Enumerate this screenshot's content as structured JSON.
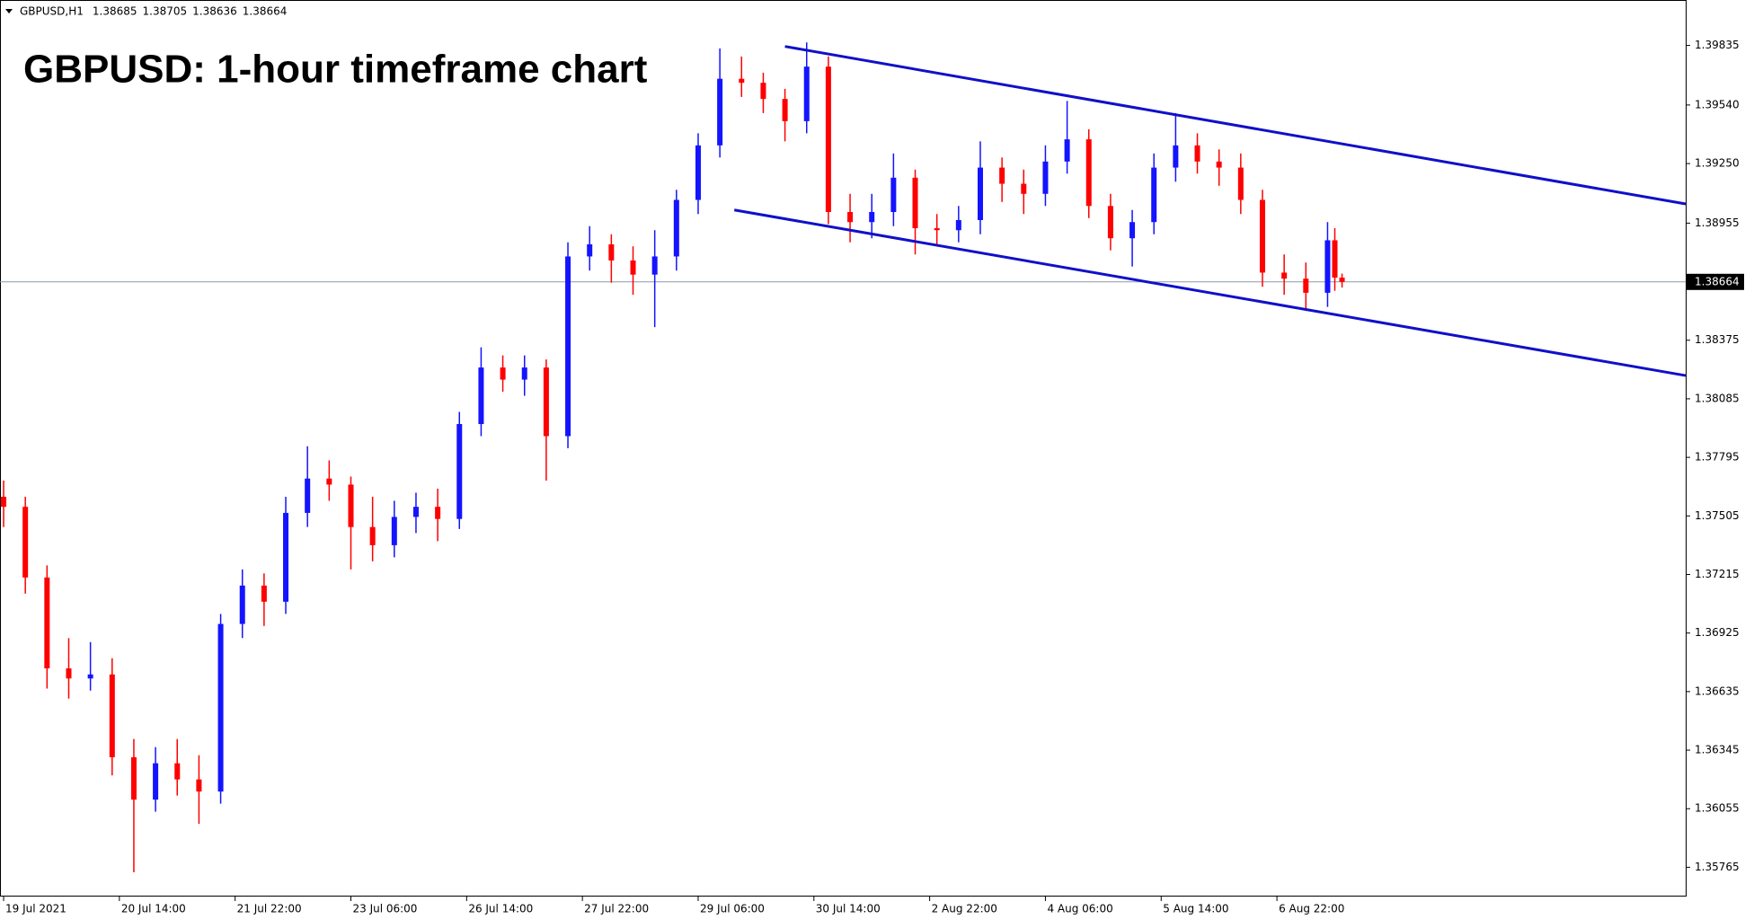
{
  "chart_data": {
    "type": "candlestick",
    "symbol": "GBPUSD,H1",
    "title": "GBPUSD: 1-hour timeframe chart",
    "x": [
      0,
      6,
      12,
      18,
      24,
      30,
      36,
      42,
      48,
      54,
      60,
      66,
      72,
      78,
      84,
      90,
      96,
      102,
      108,
      114,
      120,
      126,
      132,
      138,
      144,
      150,
      156,
      162,
      168,
      174,
      180,
      186,
      192,
      198,
      204,
      210,
      216,
      222,
      228,
      234,
      240,
      246,
      252,
      258,
      264,
      270,
      276,
      282,
      288,
      294,
      300,
      306,
      312,
      318,
      324,
      330,
      336,
      342,
      348,
      354,
      360,
      366,
      368,
      370
    ],
    "open": [
      1.376,
      1.3755,
      1.372,
      1.3675,
      1.367,
      1.3672,
      1.3631,
      1.361,
      1.3628,
      1.362,
      1.3614,
      1.3697,
      1.3716,
      1.3708,
      1.3752,
      1.3769,
      1.3766,
      1.3745,
      1.3736,
      1.375,
      1.3755,
      1.3749,
      1.3796,
      1.3824,
      1.3818,
      1.3824,
      1.379,
      1.3879,
      1.3885,
      1.3877,
      1.387,
      1.3879,
      1.3907,
      1.3934,
      1.3967,
      1.3965,
      1.3957,
      1.3946,
      1.3973,
      1.3901,
      1.3896,
      1.3901,
      1.3918,
      1.3893,
      1.3892,
      1.3897,
      1.3923,
      1.3915,
      1.391,
      1.3926,
      1.3937,
      1.3904,
      1.3888,
      1.3896,
      1.3923,
      1.3934,
      1.3926,
      1.3923,
      1.3907,
      1.3871,
      1.3868,
      1.3861,
      1.3887,
      1.38685
    ],
    "high": [
      1.3768,
      1.376,
      1.3726,
      1.369,
      1.3688,
      1.368,
      1.364,
      1.3636,
      1.364,
      1.3632,
      1.3702,
      1.3724,
      1.3722,
      1.376,
      1.3785,
      1.3778,
      1.377,
      1.376,
      1.3758,
      1.3762,
      1.3764,
      1.3802,
      1.3834,
      1.383,
      1.383,
      1.3828,
      1.3886,
      1.3894,
      1.389,
      1.3884,
      1.3892,
      1.3912,
      1.394,
      1.3982,
      1.3978,
      1.397,
      1.3962,
      1.3985,
      1.3978,
      1.391,
      1.391,
      1.393,
      1.3922,
      1.39,
      1.3904,
      1.3936,
      1.3928,
      1.3922,
      1.3934,
      1.3956,
      1.3942,
      1.391,
      1.3902,
      1.393,
      1.395,
      1.394,
      1.3932,
      1.393,
      1.3912,
      1.388,
      1.3876,
      1.3896,
      1.3893,
      1.38705
    ],
    "low": [
      1.3745,
      1.3712,
      1.3665,
      1.366,
      1.3664,
      1.3622,
      1.3574,
      1.3604,
      1.3612,
      1.3598,
      1.3608,
      1.369,
      1.3696,
      1.3702,
      1.3745,
      1.3758,
      1.3724,
      1.3728,
      1.373,
      1.3742,
      1.3738,
      1.3744,
      1.379,
      1.3812,
      1.381,
      1.3768,
      1.3784,
      1.3872,
      1.3866,
      1.386,
      1.3844,
      1.3872,
      1.39,
      1.3928,
      1.3958,
      1.395,
      1.3936,
      1.394,
      1.3895,
      1.3886,
      1.3888,
      1.3894,
      1.388,
      1.3884,
      1.3886,
      1.389,
      1.3906,
      1.39,
      1.3904,
      1.392,
      1.3898,
      1.3882,
      1.3874,
      1.389,
      1.3916,
      1.392,
      1.3914,
      1.39,
      1.3864,
      1.386,
      1.3852,
      1.3854,
      1.3862,
      1.38636
    ],
    "close": [
      1.3755,
      1.372,
      1.3675,
      1.367,
      1.3672,
      1.3631,
      1.361,
      1.3628,
      1.362,
      1.3614,
      1.3697,
      1.3716,
      1.3708,
      1.3752,
      1.3769,
      1.3766,
      1.3745,
      1.3736,
      1.375,
      1.3755,
      1.3749,
      1.3796,
      1.3824,
      1.3818,
      1.3824,
      1.379,
      1.3879,
      1.3885,
      1.3877,
      1.387,
      1.3879,
      1.3907,
      1.3934,
      1.3967,
      1.3965,
      1.3957,
      1.3946,
      1.3973,
      1.3901,
      1.3896,
      1.3901,
      1.3918,
      1.3893,
      1.3892,
      1.3897,
      1.3923,
      1.3915,
      1.391,
      1.3926,
      1.3937,
      1.3904,
      1.3888,
      1.3896,
      1.3923,
      1.3934,
      1.3926,
      1.3923,
      1.3907,
      1.3871,
      1.3868,
      1.3861,
      1.3887,
      1.38685,
      1.38664
    ],
    "up_color": "#1414ff",
    "down_color": "#ff0000",
    "xlim": [
      -1,
      465
    ],
    "ylim": [
      1.3562,
      1.4006
    ],
    "yticks": [
      1.39835,
      {
        "value": 1.3954,
        "label": "1.39540"
      },
      {
        "value": 1.3925,
        "label": "1.39250"
      },
      1.38955,
      1.38375,
      1.38085,
      1.37795,
      1.37505,
      1.37215,
      1.36925,
      1.36635,
      1.36345,
      1.36055,
      1.35765
    ],
    "xticks": [
      {
        "value": 0,
        "label": "19 Jul 2021"
      },
      {
        "value": 32,
        "label": "20 Jul 14:00"
      },
      {
        "value": 64,
        "label": "21 Jul 22:00"
      },
      {
        "value": 96,
        "label": "23 Jul 06:00"
      },
      {
        "value": 128,
        "label": "26 Jul 14:00"
      },
      {
        "value": 160,
        "label": "27 Jul 22:00"
      },
      {
        "value": 192,
        "label": "29 Jul 06:00"
      },
      {
        "value": 224,
        "label": "30 Jul 14:00"
      },
      {
        "value": 256,
        "label": "2 Aug 22:00"
      },
      {
        "value": 288,
        "label": "4 Aug 06:00"
      },
      {
        "value": 320,
        "label": "5 Aug 14:00"
      },
      {
        "value": 352,
        "label": "6 Aug 22:00"
      }
    ],
    "trend_lines": [
      {
        "x": [
          216,
          465
        ],
        "y": [
          1.3983,
          1.3905
        ],
        "color": "#1010c8"
      },
      {
        "x": [
          202,
          465
        ],
        "y": [
          1.3902,
          1.382
        ],
        "color": "#1010c8"
      }
    ],
    "price_line_color": "#8a9aaa"
  }
}
